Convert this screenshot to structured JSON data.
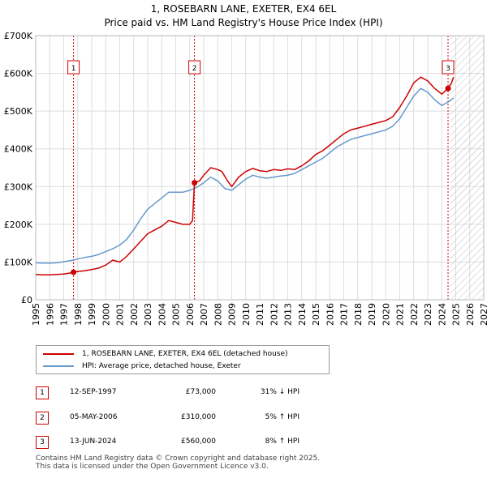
{
  "chart_data": {
    "type": "line",
    "title": "1, ROSEBARN LANE, EXETER, EX4 6EL",
    "subtitle": "Price paid vs. HM Land Registry's House Price Index (HPI)",
    "xlabel": "",
    "ylabel": "",
    "xlim": [
      1995,
      2027
    ],
    "ylim": [
      0,
      700000
    ],
    "x_ticks": [
      1995,
      1996,
      1997,
      1998,
      1999,
      2000,
      2001,
      2002,
      2003,
      2004,
      2005,
      2006,
      2007,
      2008,
      2009,
      2010,
      2011,
      2012,
      2013,
      2014,
      2015,
      2016,
      2017,
      2018,
      2019,
      2020,
      2021,
      2022,
      2023,
      2024,
      2025,
      2026,
      2027
    ],
    "y_ticks": [
      {
        "value": 0,
        "label": "£0"
      },
      {
        "value": 100000,
        "label": "£100K"
      },
      {
        "value": 200000,
        "label": "£200K"
      },
      {
        "value": 300000,
        "label": "£300K"
      },
      {
        "value": 400000,
        "label": "£400K"
      },
      {
        "value": 500000,
        "label": "£500K"
      },
      {
        "value": 600000,
        "label": "£600K"
      },
      {
        "value": 700000,
        "label": "£700K"
      }
    ],
    "grid": true,
    "forecast_from": 2024.6,
    "series": [
      {
        "name": "1, ROSEBARN LANE, EXETER, EX4 6EL (detached house)",
        "color": "#cc0000",
        "points": [
          [
            1995.0,
            67000
          ],
          [
            1995.5,
            66000
          ],
          [
            1996.0,
            66000
          ],
          [
            1996.5,
            67000
          ],
          [
            1997.0,
            68000
          ],
          [
            1997.5,
            71000
          ],
          [
            1997.7,
            73000
          ],
          [
            1998.0,
            75000
          ],
          [
            1998.5,
            77000
          ],
          [
            1999.0,
            80000
          ],
          [
            1999.5,
            84000
          ],
          [
            2000.0,
            92000
          ],
          [
            2000.5,
            105000
          ],
          [
            2001.0,
            100000
          ],
          [
            2001.5,
            115000
          ],
          [
            2002.0,
            135000
          ],
          [
            2002.5,
            155000
          ],
          [
            2003.0,
            175000
          ],
          [
            2003.5,
            185000
          ],
          [
            2004.0,
            195000
          ],
          [
            2004.5,
            210000
          ],
          [
            2005.0,
            205000
          ],
          [
            2005.5,
            200000
          ],
          [
            2006.0,
            200000
          ],
          [
            2006.2,
            210000
          ],
          [
            2006.34,
            310000
          ],
          [
            2006.7,
            315000
          ],
          [
            2007.0,
            330000
          ],
          [
            2007.5,
            350000
          ],
          [
            2008.0,
            345000
          ],
          [
            2008.3,
            340000
          ],
          [
            2008.7,
            315000
          ],
          [
            2009.0,
            300000
          ],
          [
            2009.5,
            325000
          ],
          [
            2010.0,
            340000
          ],
          [
            2010.5,
            348000
          ],
          [
            2011.0,
            342000
          ],
          [
            2011.5,
            340000
          ],
          [
            2012.0,
            345000
          ],
          [
            2012.5,
            343000
          ],
          [
            2013.0,
            347000
          ],
          [
            2013.5,
            345000
          ],
          [
            2014.0,
            355000
          ],
          [
            2014.5,
            368000
          ],
          [
            2015.0,
            385000
          ],
          [
            2015.5,
            395000
          ],
          [
            2016.0,
            410000
          ],
          [
            2016.5,
            425000
          ],
          [
            2017.0,
            440000
          ],
          [
            2017.5,
            450000
          ],
          [
            2018.0,
            455000
          ],
          [
            2018.5,
            460000
          ],
          [
            2019.0,
            465000
          ],
          [
            2019.5,
            470000
          ],
          [
            2020.0,
            475000
          ],
          [
            2020.5,
            485000
          ],
          [
            2021.0,
            510000
          ],
          [
            2021.5,
            540000
          ],
          [
            2022.0,
            575000
          ],
          [
            2022.5,
            590000
          ],
          [
            2023.0,
            580000
          ],
          [
            2023.5,
            560000
          ],
          [
            2024.0,
            545000
          ],
          [
            2024.45,
            560000
          ],
          [
            2024.7,
            575000
          ],
          [
            2024.85,
            590000
          ]
        ]
      },
      {
        "name": "HPI: Average price, detached house, Exeter",
        "color": "#6699cc",
        "points": [
          [
            1995.0,
            98000
          ],
          [
            1995.5,
            97000
          ],
          [
            1996.0,
            97000
          ],
          [
            1996.5,
            98000
          ],
          [
            1997.0,
            101000
          ],
          [
            1997.5,
            104000
          ],
          [
            1998.0,
            108000
          ],
          [
            1998.5,
            112000
          ],
          [
            1999.0,
            115000
          ],
          [
            1999.5,
            120000
          ],
          [
            2000.0,
            128000
          ],
          [
            2000.5,
            135000
          ],
          [
            2001.0,
            145000
          ],
          [
            2001.5,
            160000
          ],
          [
            2002.0,
            185000
          ],
          [
            2002.5,
            215000
          ],
          [
            2003.0,
            240000
          ],
          [
            2003.5,
            255000
          ],
          [
            2004.0,
            270000
          ],
          [
            2004.5,
            285000
          ],
          [
            2005.0,
            285000
          ],
          [
            2005.5,
            285000
          ],
          [
            2006.0,
            290000
          ],
          [
            2006.5,
            298000
          ],
          [
            2007.0,
            310000
          ],
          [
            2007.5,
            325000
          ],
          [
            2008.0,
            315000
          ],
          [
            2008.5,
            295000
          ],
          [
            2009.0,
            290000
          ],
          [
            2009.5,
            305000
          ],
          [
            2010.0,
            320000
          ],
          [
            2010.5,
            330000
          ],
          [
            2011.0,
            325000
          ],
          [
            2011.5,
            322000
          ],
          [
            2012.0,
            325000
          ],
          [
            2012.5,
            328000
          ],
          [
            2013.0,
            330000
          ],
          [
            2013.5,
            335000
          ],
          [
            2014.0,
            345000
          ],
          [
            2014.5,
            355000
          ],
          [
            2015.0,
            365000
          ],
          [
            2015.5,
            375000
          ],
          [
            2016.0,
            390000
          ],
          [
            2016.5,
            405000
          ],
          [
            2017.0,
            415000
          ],
          [
            2017.5,
            425000
          ],
          [
            2018.0,
            430000
          ],
          [
            2018.5,
            435000
          ],
          [
            2019.0,
            440000
          ],
          [
            2019.5,
            445000
          ],
          [
            2020.0,
            450000
          ],
          [
            2020.5,
            460000
          ],
          [
            2021.0,
            480000
          ],
          [
            2021.5,
            510000
          ],
          [
            2022.0,
            540000
          ],
          [
            2022.5,
            560000
          ],
          [
            2023.0,
            550000
          ],
          [
            2023.5,
            530000
          ],
          [
            2024.0,
            515000
          ],
          [
            2024.5,
            525000
          ],
          [
            2024.85,
            535000
          ]
        ]
      }
    ],
    "sales": [
      {
        "label": "1",
        "x": 1997.7,
        "price": 73000
      },
      {
        "label": "2",
        "x": 2006.34,
        "price": 310000
      },
      {
        "label": "3",
        "x": 2024.45,
        "price": 560000
      }
    ]
  },
  "legend": {
    "property_label": "1, ROSEBARN LANE, EXETER, EX4 6EL (detached house)",
    "hpi_label": "HPI: Average price, detached house, Exeter"
  },
  "transactions": [
    {
      "num": "1",
      "date": "12-SEP-1997",
      "price": "£73,000",
      "hpi": "31% ↓ HPI"
    },
    {
      "num": "2",
      "date": "05-MAY-2006",
      "price": "£310,000",
      "hpi": "5% ↑ HPI"
    },
    {
      "num": "3",
      "date": "13-JUN-2024",
      "price": "£560,000",
      "hpi": "8% ↑ HPI"
    }
  ],
  "footer": {
    "line1": "Contains HM Land Registry data © Crown copyright and database right 2025.",
    "line2": "This data is licensed under the Open Government Licence v3.0."
  }
}
